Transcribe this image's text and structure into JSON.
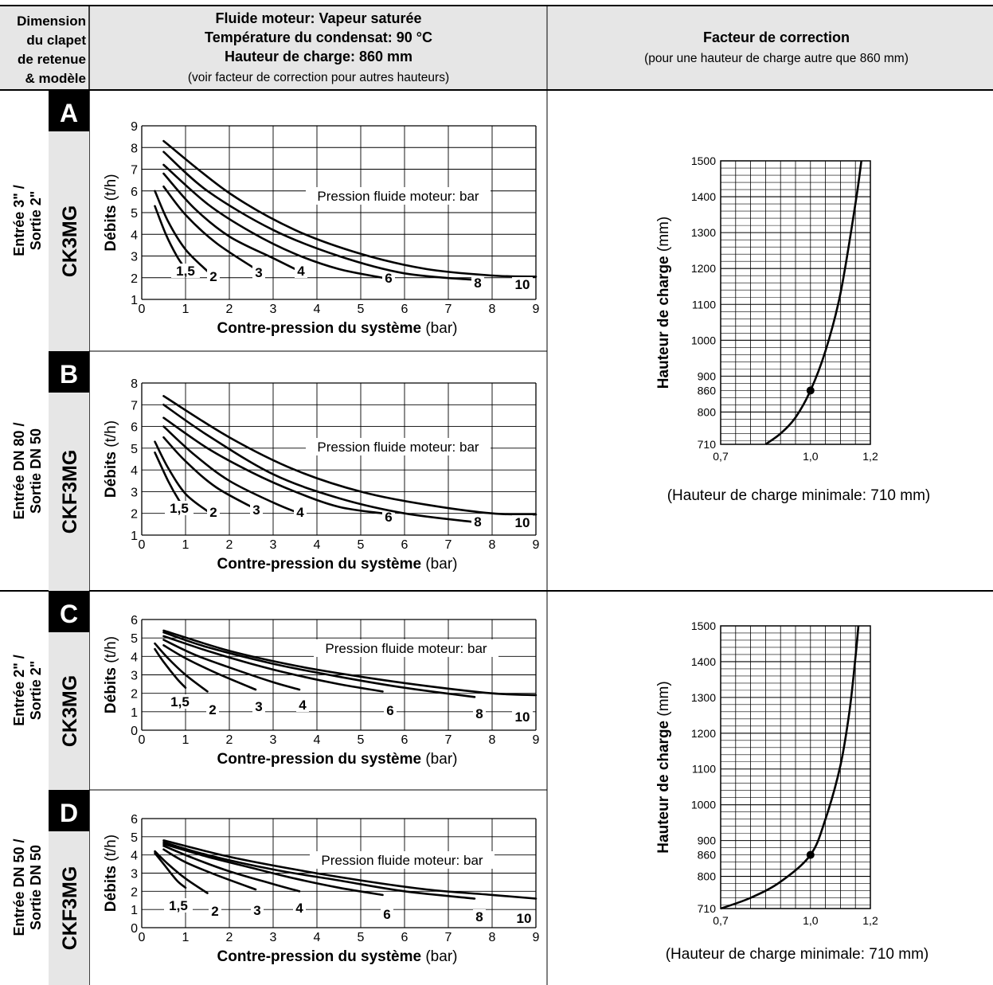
{
  "header": {
    "col1": [
      "Dimension",
      "du clapet",
      "de retenue",
      "& modèle"
    ],
    "col2": [
      "Fluide moteur: Vapeur saturée",
      "Température du condensat: 90 °C",
      "Hauteur de charge: 860 mm",
      "(voir facteur de correction pour autres hauteurs)"
    ],
    "col3": [
      "Facteur de correction",
      "(pour une hauteur de charge autre que 860 mm)"
    ]
  },
  "sections": [
    {
      "letter": "A",
      "size_lines": [
        "Entrée 3\" /",
        "Sortie 2\""
      ],
      "model": "CK3MG"
    },
    {
      "letter": "B",
      "size_lines": [
        "Entrée DN 80 /",
        "Sortie DN 50"
      ],
      "model": "CKF3MG"
    },
    {
      "letter": "C",
      "size_lines": [
        "Entrée 2\" /",
        "Sortie 2\""
      ],
      "model": "CK3MG"
    },
    {
      "letter": "D",
      "size_lines": [
        "Entrée DN 50 /",
        "Sortie DN 50"
      ],
      "model": "CKF3MG"
    }
  ],
  "flow_axis": {
    "xlabel_bold": "Contre-pression du système",
    "xlabel_unit": "(bar)",
    "ylabel_bold": "Débits",
    "ylabel_unit": "(t/h)",
    "legend": "Pression fluide moteur: bar"
  },
  "correction_axis": {
    "ylabel_bold": "Hauteur de charge",
    "ylabel_unit": "(mm)",
    "x_ticks": [
      "0,7",
      "1,0",
      "1,2"
    ],
    "y_ticks": [
      "710",
      "800",
      "860",
      "900",
      "1000",
      "1100",
      "1200",
      "1300",
      "1400",
      "1500"
    ]
  },
  "chart_data": [
    {
      "type": "line",
      "id": "A",
      "xlim": [
        0,
        9
      ],
      "ylim": [
        1,
        9
      ],
      "grid": true,
      "series": [
        {
          "name": "1,5",
          "x": [
            0.3,
            0.55,
            0.8,
            1.0
          ],
          "y": [
            5.3,
            4.0,
            3.0,
            2.4
          ]
        },
        {
          "name": "2",
          "x": [
            0.3,
            0.6,
            1.0,
            1.5
          ],
          "y": [
            6.0,
            4.6,
            3.3,
            2.3
          ]
        },
        {
          "name": "3",
          "x": [
            0.5,
            1.0,
            1.7,
            2.6
          ],
          "y": [
            6.2,
            4.9,
            3.6,
            2.4
          ]
        },
        {
          "name": "4",
          "x": [
            0.5,
            1.2,
            2.0,
            3.0,
            3.6
          ],
          "y": [
            6.8,
            5.2,
            3.9,
            2.9,
            2.3
          ]
        },
        {
          "name": "6",
          "x": [
            0.5,
            1.5,
            2.5,
            3.5,
            4.5,
            5.5
          ],
          "y": [
            7.2,
            5.4,
            4.1,
            3.1,
            2.4,
            2.0
          ]
        },
        {
          "name": "8",
          "x": [
            0.5,
            1.5,
            3.0,
            4.5,
            6.0,
            7.6
          ],
          "y": [
            7.8,
            6.0,
            4.2,
            3.0,
            2.2,
            1.9
          ]
        },
        {
          "name": "10",
          "x": [
            0.5,
            2.0,
            3.5,
            5.0,
            6.5,
            8.0,
            9.0
          ],
          "y": [
            8.3,
            5.9,
            4.2,
            3.1,
            2.4,
            2.1,
            2.05
          ]
        }
      ]
    },
    {
      "type": "line",
      "id": "B",
      "xlim": [
        0,
        9
      ],
      "ylim": [
        1,
        8
      ],
      "grid": true,
      "series": [
        {
          "name": "1,5",
          "x": [
            0.3,
            0.6,
            0.85,
            1.0
          ],
          "y": [
            4.8,
            3.5,
            2.6,
            2.2
          ]
        },
        {
          "name": "2",
          "x": [
            0.3,
            0.6,
            1.0,
            1.5
          ],
          "y": [
            5.3,
            4.1,
            2.9,
            2.1
          ]
        },
        {
          "name": "3",
          "x": [
            0.5,
            1.0,
            1.7,
            2.6
          ],
          "y": [
            5.5,
            4.4,
            3.2,
            2.2
          ]
        },
        {
          "name": "4",
          "x": [
            0.5,
            1.2,
            2.0,
            3.0,
            3.6
          ],
          "y": [
            6.0,
            4.7,
            3.5,
            2.5,
            2.0
          ]
        },
        {
          "name": "6",
          "x": [
            0.5,
            1.5,
            2.5,
            3.5,
            4.5,
            5.5
          ],
          "y": [
            6.4,
            5.0,
            3.9,
            3.0,
            2.3,
            2.0
          ]
        },
        {
          "name": "8",
          "x": [
            0.5,
            1.5,
            3.0,
            4.5,
            6.0,
            7.6
          ],
          "y": [
            7.0,
            5.6,
            3.8,
            2.7,
            2.0,
            1.6
          ]
        },
        {
          "name": "10",
          "x": [
            0.5,
            2.0,
            3.5,
            5.0,
            6.5,
            8.0,
            9.0
          ],
          "y": [
            7.4,
            5.5,
            4.0,
            3.0,
            2.4,
            2.0,
            1.95
          ]
        }
      ]
    },
    {
      "type": "line",
      "id": "C",
      "xlim": [
        0,
        9
      ],
      "ylim": [
        0,
        6
      ],
      "grid": true,
      "series": [
        {
          "name": "1,5",
          "x": [
            0.3,
            0.5,
            0.8,
            1.0
          ],
          "y": [
            4.4,
            3.7,
            2.8,
            2.3
          ]
        },
        {
          "name": "2",
          "x": [
            0.3,
            0.6,
            1.0,
            1.5
          ],
          "y": [
            4.7,
            3.9,
            3.0,
            2.1
          ]
        },
        {
          "name": "3",
          "x": [
            0.5,
            1.0,
            1.7,
            2.6
          ],
          "y": [
            4.6,
            3.9,
            3.1,
            2.2
          ]
        },
        {
          "name": "4",
          "x": [
            0.5,
            1.2,
            2.0,
            3.0,
            3.6
          ],
          "y": [
            4.9,
            4.1,
            3.4,
            2.6,
            2.2
          ]
        },
        {
          "name": "6",
          "x": [
            0.5,
            1.5,
            2.5,
            3.5,
            4.5,
            5.5
          ],
          "y": [
            5.1,
            4.3,
            3.6,
            3.0,
            2.5,
            2.1
          ]
        },
        {
          "name": "8",
          "x": [
            0.5,
            1.5,
            3.0,
            4.5,
            6.0,
            7.6
          ],
          "y": [
            5.3,
            4.5,
            3.6,
            2.9,
            2.3,
            1.8
          ]
        },
        {
          "name": "10",
          "x": [
            0.5,
            2.0,
            3.5,
            5.0,
            6.5,
            8.0,
            9.0
          ],
          "y": [
            5.4,
            4.3,
            3.5,
            2.9,
            2.4,
            2.0,
            1.9
          ]
        }
      ]
    },
    {
      "type": "line",
      "id": "D",
      "xlim": [
        0,
        9
      ],
      "ylim": [
        0,
        6
      ],
      "grid": true,
      "series": [
        {
          "name": "1,5",
          "x": [
            0.3,
            0.5,
            0.8,
            1.0
          ],
          "y": [
            4.1,
            3.5,
            2.6,
            2.2
          ]
        },
        {
          "name": "2",
          "x": [
            0.3,
            0.6,
            1.0,
            1.5
          ],
          "y": [
            4.2,
            3.5,
            2.7,
            1.9
          ]
        },
        {
          "name": "3",
          "x": [
            0.5,
            1.0,
            1.7,
            2.6
          ],
          "y": [
            4.3,
            3.6,
            2.9,
            2.1
          ]
        },
        {
          "name": "4",
          "x": [
            0.5,
            1.2,
            2.0,
            3.0,
            3.6
          ],
          "y": [
            4.5,
            3.8,
            3.1,
            2.4,
            2.0
          ]
        },
        {
          "name": "6",
          "x": [
            0.5,
            1.5,
            2.5,
            3.5,
            4.5,
            5.5
          ],
          "y": [
            4.6,
            3.9,
            3.3,
            2.7,
            2.2,
            1.8
          ]
        },
        {
          "name": "8",
          "x": [
            0.5,
            1.5,
            3.0,
            4.5,
            6.0,
            7.6
          ],
          "y": [
            4.7,
            4.0,
            3.2,
            2.6,
            2.0,
            1.6
          ]
        },
        {
          "name": "10",
          "x": [
            0.5,
            2.0,
            3.5,
            5.0,
            6.5,
            8.0,
            9.0
          ],
          "y": [
            4.8,
            3.9,
            3.2,
            2.6,
            2.1,
            1.8,
            1.6
          ]
        }
      ]
    },
    {
      "type": "line",
      "id": "correction-top",
      "xlim": [
        0.7,
        1.2
      ],
      "ylim": [
        710,
        1500
      ],
      "grid": true,
      "x": [
        0.85,
        0.9,
        0.95,
        1.0,
        1.05,
        1.1,
        1.15,
        1.17
      ],
      "y": [
        710,
        740,
        785,
        860,
        970,
        1130,
        1380,
        1500
      ],
      "marker": {
        "x": 1.0,
        "y": 860
      },
      "note": "(Hauteur de  charge minimale: 710 mm)"
    },
    {
      "type": "line",
      "id": "correction-bottom",
      "xlim": [
        0.7,
        1.2
      ],
      "ylim": [
        710,
        1500
      ],
      "grid": true,
      "x": [
        0.7,
        0.8,
        0.9,
        1.0,
        1.05,
        1.1,
        1.13,
        1.15,
        1.16
      ],
      "y": [
        710,
        740,
        785,
        860,
        960,
        1110,
        1260,
        1410,
        1500
      ],
      "marker": {
        "x": 1.0,
        "y": 860
      },
      "note": "(Hauteur de charge minimale: 710 mm)"
    }
  ]
}
